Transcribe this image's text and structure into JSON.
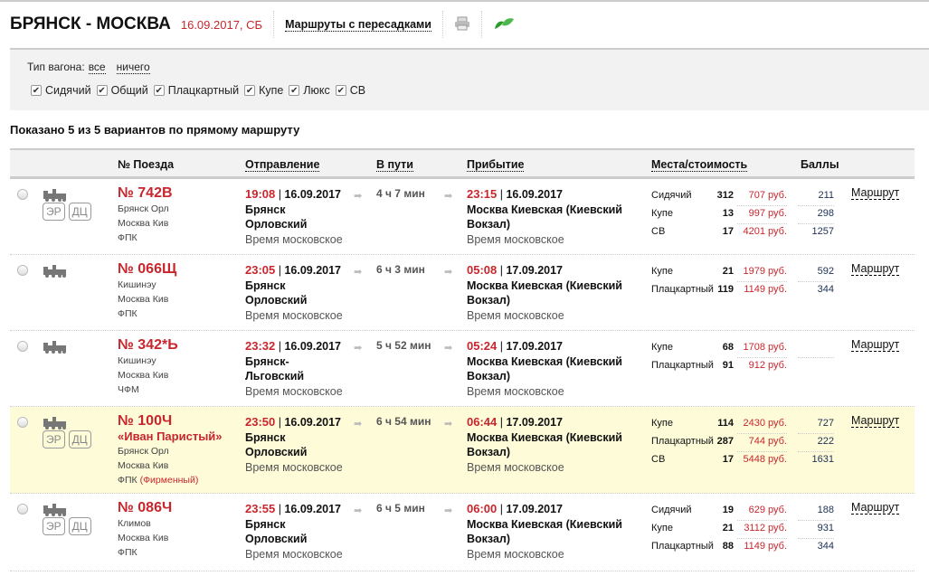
{
  "header": {
    "title": "БРЯНСК - МОСКВА",
    "date": "16.09.2017, СБ",
    "transfers_link": "Маршруты с пересадками"
  },
  "filter": {
    "label": "Тип вагона:",
    "all": "все",
    "none": "ничего",
    "types": [
      {
        "label": "Сидячий",
        "checked": true
      },
      {
        "label": "Общий",
        "checked": true
      },
      {
        "label": "Плацкартный",
        "checked": true
      },
      {
        "label": "Купе",
        "checked": true
      },
      {
        "label": "Люкс",
        "checked": true
      },
      {
        "label": "СВ",
        "checked": true
      }
    ]
  },
  "summary": "Показано 5 из 5 вариантов по прямому маршруту",
  "columns": {
    "train": "№ Поезда",
    "departure": "Отправление",
    "duration": "В пути",
    "arrival": "Прибытие",
    "seats": "Места/стоимость",
    "points": "Баллы"
  },
  "route_label": "Маршрут",
  "colors": {
    "accent": "#c8262d",
    "highlight": "#fdfbd8"
  },
  "trains": [
    {
      "num": "№ 742В",
      "name": "",
      "from": "Брянск Орл",
      "to": "Москва Кив",
      "carrier": "ФПК",
      "carrier_note": "",
      "badges": [
        "ЭР",
        "ДЦ"
      ],
      "highlight": false,
      "dep_time": "19:08",
      "dep_date": "16.09.2017",
      "dep_station": [
        "Брянск",
        "Орловский"
      ],
      "dep_tz": "Время московское",
      "duration": "4 ч 7 мин",
      "arr_time": "23:15",
      "arr_date": "16.09.2017",
      "arr_station": [
        "Москва Киевская (Киевский",
        "Вокзал)"
      ],
      "arr_tz": "Время московское",
      "seats": [
        {
          "type": "Сидячий",
          "count": "312",
          "price": "707 руб.",
          "points": "211"
        },
        {
          "type": "Купе",
          "count": "13",
          "price": "997 руб.",
          "points": "298"
        },
        {
          "type": "СВ",
          "count": "17",
          "price": "4201 руб.",
          "points": "1257"
        }
      ]
    },
    {
      "num": "№ 066Щ",
      "name": "",
      "from": "Кишинэу",
      "to": "Москва Кив",
      "carrier": "ФПК",
      "carrier_note": "",
      "badges": [],
      "highlight": false,
      "dep_time": "23:05",
      "dep_date": "16.09.2017",
      "dep_station": [
        "Брянск",
        "Орловский"
      ],
      "dep_tz": "Время московское",
      "duration": "6 ч 3 мин",
      "arr_time": "05:08",
      "arr_date": "17.09.2017",
      "arr_station": [
        "Москва Киевская (Киевский",
        "Вокзал)"
      ],
      "arr_tz": "Время московское",
      "seats": [
        {
          "type": "Купе",
          "count": "21",
          "price": "1979 руб.",
          "points": "592"
        },
        {
          "type": "Плацкартный",
          "count": "119",
          "price": "1149 руб.",
          "points": "344"
        }
      ]
    },
    {
      "num": "№ 342*Ь",
      "name": "",
      "from": "Кишинэу",
      "to": "Москва Кив",
      "carrier": "ЧФМ",
      "carrier_note": "",
      "badges": [],
      "highlight": false,
      "dep_time": "23:32",
      "dep_date": "16.09.2017",
      "dep_station": [
        "Брянск-",
        "Льговский"
      ],
      "dep_tz": "Время московское",
      "duration": "5 ч 52 мин",
      "arr_time": "05:24",
      "arr_date": "17.09.2017",
      "arr_station": [
        "Москва Киевская (Киевский",
        "Вокзал)"
      ],
      "arr_tz": "Время московское",
      "seats": [
        {
          "type": "Купе",
          "count": "68",
          "price": "1708 руб.",
          "points": ""
        },
        {
          "type": "Плацкартный",
          "count": "91",
          "price": "912 руб.",
          "points": ""
        }
      ]
    },
    {
      "num": "№ 100Ч",
      "name": "«Иван Паристый»",
      "from": "Брянск Орл",
      "to": "Москва Кив",
      "carrier": "ФПК",
      "carrier_note": "(Фирменный)",
      "badges": [
        "ЭР",
        "ДЦ"
      ],
      "highlight": true,
      "dep_time": "23:50",
      "dep_date": "16.09.2017",
      "dep_station": [
        "Брянск",
        "Орловский"
      ],
      "dep_tz": "Время московское",
      "duration": "6 ч 54 мин",
      "arr_time": "06:44",
      "arr_date": "17.09.2017",
      "arr_station": [
        "Москва Киевская (Киевский",
        "Вокзал)"
      ],
      "arr_tz": "Время московское",
      "seats": [
        {
          "type": "Купе",
          "count": "114",
          "price": "2430 руб.",
          "points": "727"
        },
        {
          "type": "Плацкартный",
          "count": "287",
          "price": "744 руб.",
          "points": "222"
        },
        {
          "type": "СВ",
          "count": "17",
          "price": "5448 руб.",
          "points": "1631"
        }
      ]
    },
    {
      "num": "№ 086Ч",
      "name": "",
      "from": "Климов",
      "to": "Москва Кив",
      "carrier": "ФПК",
      "carrier_note": "",
      "badges": [
        "ЭР",
        "ДЦ"
      ],
      "highlight": false,
      "dep_time": "23:55",
      "dep_date": "16.09.2017",
      "dep_station": [
        "Брянск",
        "Орловский"
      ],
      "dep_tz": "Время московское",
      "duration": "6 ч 5 мин",
      "arr_time": "06:00",
      "arr_date": "17.09.2017",
      "arr_station": [
        "Москва Киевская (Киевский",
        "Вокзал)"
      ],
      "arr_tz": "Время московское",
      "seats": [
        {
          "type": "Сидячий",
          "count": "19",
          "price": "629 руб.",
          "points": "188"
        },
        {
          "type": "Купе",
          "count": "21",
          "price": "3112 руб.",
          "points": "931"
        },
        {
          "type": "Плацкартный",
          "count": "88",
          "price": "1149 руб.",
          "points": "344"
        }
      ]
    }
  ]
}
